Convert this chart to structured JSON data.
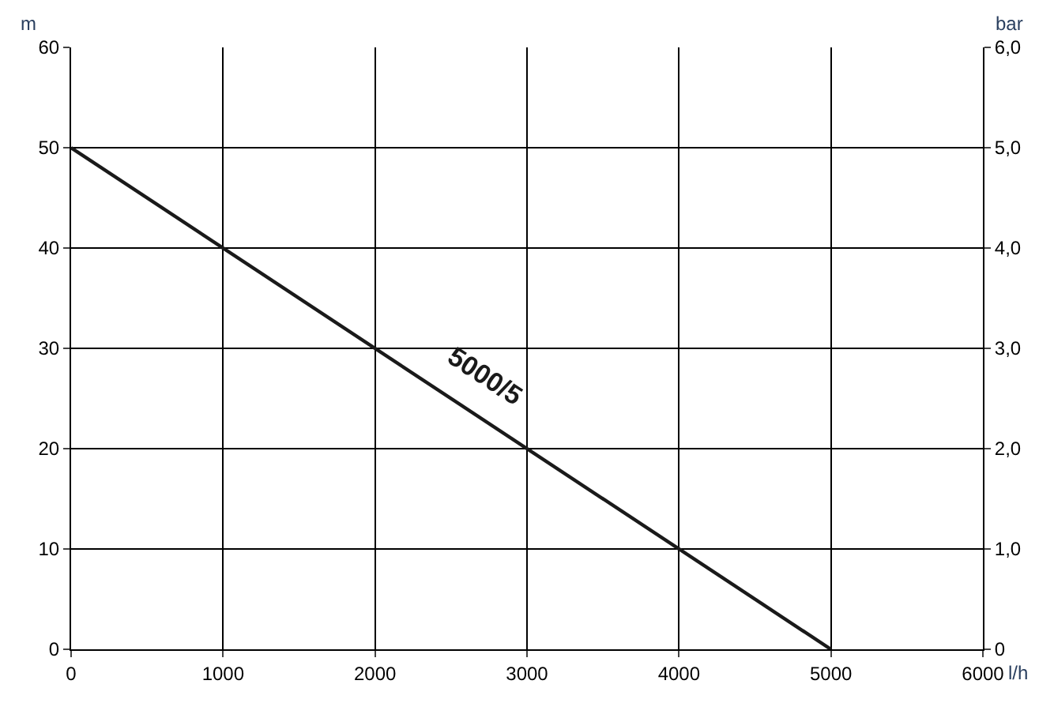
{
  "chart_data": {
    "type": "line",
    "xlabel": "l/h",
    "ylabel": "m",
    "y2label": "bar",
    "x": [
      0,
      5000
    ],
    "series": [
      {
        "name": "5000/5",
        "color": "#1a1a1a",
        "values": [
          50,
          0
        ]
      }
    ],
    "xlim": [
      0,
      6000
    ],
    "xticks": [
      0,
      1000,
      2000,
      3000,
      4000,
      5000,
      6000
    ],
    "ylim": [
      0,
      60
    ],
    "yticks": [
      0,
      10,
      20,
      30,
      40,
      50,
      60
    ],
    "y2lim": [
      0,
      6
    ],
    "y2ticks": [
      0,
      {
        "value": 1,
        "label": "1,0"
      },
      {
        "value": 2,
        "label": "2,0"
      },
      {
        "value": 3,
        "label": "3,0"
      },
      {
        "value": 4,
        "label": "4,0"
      },
      {
        "value": 5,
        "label": "5,0"
      },
      {
        "value": 6,
        "label": "6,0"
      }
    ],
    "grid": true,
    "legend": false,
    "marker": "none",
    "line_style": "solid"
  }
}
